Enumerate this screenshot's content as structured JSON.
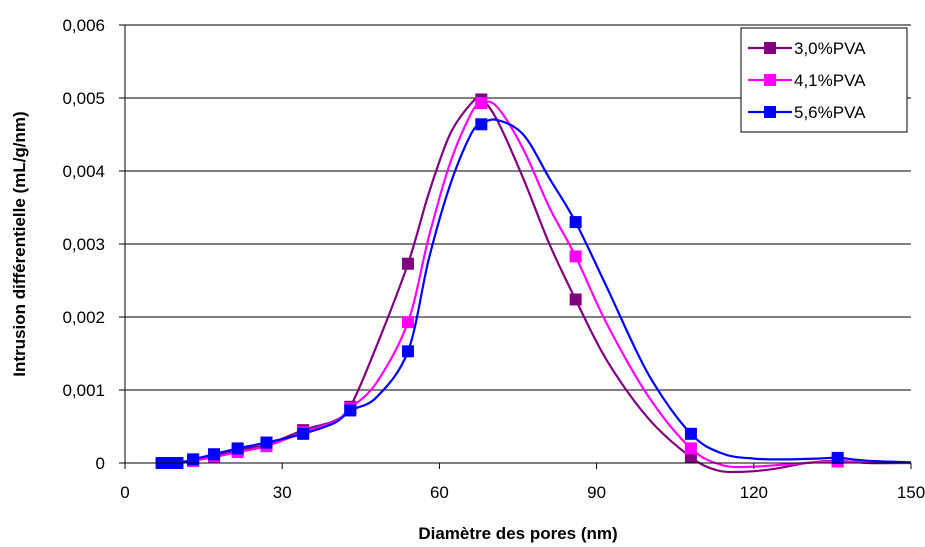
{
  "chart_data": {
    "type": "line",
    "title": "",
    "xlabel": "Diamètre des pores (nm)",
    "ylabel": "Intrusion différentielle (mL/g/nm)",
    "xlim": [
      0,
      150
    ],
    "ylim": [
      0,
      0.006
    ],
    "x_ticks": [
      0,
      30,
      60,
      90,
      120,
      150
    ],
    "x_tick_labels": [
      "0",
      "30",
      "60",
      "90",
      "120",
      "150"
    ],
    "y_ticks": [
      0,
      0.001,
      0.002,
      0.003,
      0.004,
      0.005,
      0.006
    ],
    "y_tick_labels": [
      "0",
      "0,001",
      "0,002",
      "0,003",
      "0,004",
      "0,005",
      "0,006"
    ],
    "grid": "horizontal",
    "legend_position": "top-right",
    "series": [
      {
        "name": "3,0%PVA",
        "color": "#800080",
        "markers": [
          [
            7,
            0
          ],
          [
            8.5,
            0
          ],
          [
            10,
            0
          ],
          [
            13,
            3e-05
          ],
          [
            17,
            0.0001
          ],
          [
            21.5,
            0.00018
          ],
          [
            27,
            0.00025
          ],
          [
            34,
            0.00045
          ],
          [
            43,
            0.00077
          ],
          [
            54,
            0.00273
          ],
          [
            68,
            0.00498
          ],
          [
            86,
            0.00224
          ],
          [
            108,
            8e-05
          ],
          [
            136,
            3e-05
          ]
        ],
        "curve": [
          [
            7,
            0
          ],
          [
            10,
            0
          ],
          [
            13,
            3e-05
          ],
          [
            17,
            0.0001
          ],
          [
            21.5,
            0.00018
          ],
          [
            27,
            0.00025
          ],
          [
            34,
            0.00045
          ],
          [
            40,
            0.00058
          ],
          [
            43,
            0.00077
          ],
          [
            48,
            0.0016
          ],
          [
            54,
            0.00273
          ],
          [
            58,
            0.0037
          ],
          [
            62,
            0.0045
          ],
          [
            66,
            0.00492
          ],
          [
            68,
            0.00498
          ],
          [
            71,
            0.0047
          ],
          [
            76,
            0.0039
          ],
          [
            81,
            0.003
          ],
          [
            86,
            0.00224
          ],
          [
            92,
            0.0014
          ],
          [
            100,
            0.0006
          ],
          [
            108,
            8e-05
          ],
          [
            113,
            -0.0001
          ],
          [
            118,
            -0.00012
          ],
          [
            124,
            -8e-05
          ],
          [
            130,
            0
          ],
          [
            136,
            3e-05
          ],
          [
            142,
            0
          ],
          [
            150,
            0
          ]
        ]
      },
      {
        "name": "4,1%PVA",
        "color": "#ff00ff",
        "markers": [
          [
            7,
            0
          ],
          [
            8.5,
            0
          ],
          [
            10,
            0
          ],
          [
            13,
            3e-05
          ],
          [
            17,
            8e-05
          ],
          [
            21.5,
            0.00015
          ],
          [
            27,
            0.00023
          ],
          [
            34,
            0.00042
          ],
          [
            43,
            0.00075
          ],
          [
            54,
            0.00193
          ],
          [
            68,
            0.00493
          ],
          [
            86,
            0.00283
          ],
          [
            108,
            0.0002
          ],
          [
            136,
            2e-05
          ]
        ],
        "curve": [
          [
            7,
            0
          ],
          [
            10,
            0
          ],
          [
            13,
            3e-05
          ],
          [
            17,
            8e-05
          ],
          [
            21.5,
            0.00015
          ],
          [
            27,
            0.00023
          ],
          [
            34,
            0.00042
          ],
          [
            40,
            0.00057
          ],
          [
            43,
            0.00075
          ],
          [
            48,
            0.0011
          ],
          [
            54,
            0.00193
          ],
          [
            58,
            0.0031
          ],
          [
            62,
            0.0041
          ],
          [
            66,
            0.00478
          ],
          [
            68,
            0.00493
          ],
          [
            71,
            0.00488
          ],
          [
            76,
            0.0043
          ],
          [
            81,
            0.0035
          ],
          [
            86,
            0.00283
          ],
          [
            92,
            0.0019
          ],
          [
            100,
            0.0009
          ],
          [
            108,
            0.0002
          ],
          [
            114,
            -3e-05
          ],
          [
            120,
            -5e-05
          ],
          [
            126,
            -2e-05
          ],
          [
            132,
            1e-05
          ],
          [
            136,
            2e-05
          ],
          [
            142,
            1e-05
          ],
          [
            150,
            0
          ]
        ]
      },
      {
        "name": "5,6%PVA",
        "color": "#0000ff",
        "markers": [
          [
            7,
            0
          ],
          [
            8.5,
            0
          ],
          [
            10,
            0
          ],
          [
            13,
            5e-05
          ],
          [
            17,
            0.00012
          ],
          [
            21.5,
            0.0002
          ],
          [
            27,
            0.00028
          ],
          [
            34,
            0.0004
          ],
          [
            43,
            0.00072
          ],
          [
            54,
            0.00153
          ],
          [
            68,
            0.00464
          ],
          [
            86,
            0.0033
          ],
          [
            108,
            0.0004
          ],
          [
            136,
            7e-05
          ]
        ],
        "curve": [
          [
            7,
            0
          ],
          [
            10,
            0
          ],
          [
            13,
            5e-05
          ],
          [
            17,
            0.00012
          ],
          [
            21.5,
            0.0002
          ],
          [
            27,
            0.00028
          ],
          [
            34,
            0.0004
          ],
          [
            40,
            0.00055
          ],
          [
            43,
            0.00072
          ],
          [
            48,
            0.0009
          ],
          [
            54,
            0.00153
          ],
          [
            58,
            0.0028
          ],
          [
            62,
            0.0038
          ],
          [
            66,
            0.0045
          ],
          [
            68,
            0.00464
          ],
          [
            71,
            0.0047
          ],
          [
            76,
            0.0045
          ],
          [
            81,
            0.0039
          ],
          [
            86,
            0.0033
          ],
          [
            92,
            0.0024
          ],
          [
            100,
            0.0012
          ],
          [
            108,
            0.0004
          ],
          [
            114,
            0.00013
          ],
          [
            120,
            6e-05
          ],
          [
            126,
            5e-05
          ],
          [
            132,
            6e-05
          ],
          [
            136,
            7e-05
          ],
          [
            142,
            3e-05
          ],
          [
            150,
            1e-05
          ]
        ]
      }
    ]
  }
}
